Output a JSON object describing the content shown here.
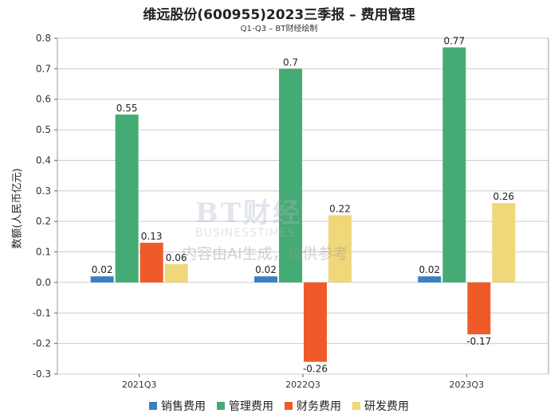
{
  "title": "维远股份(600955)2023三季报 – 费用管理",
  "subtitle": "Q1-Q3 – BT财经绘制",
  "watermark": {
    "logo": "BT财经",
    "sub": "BUSINESSTIMES",
    "note": "内容由AI生成，仅供参考"
  },
  "chart_data": {
    "type": "bar",
    "categories": [
      "2021Q3",
      "2022Q3",
      "2023Q3"
    ],
    "ylabel": "数额(人民币亿元)",
    "xlabel": "",
    "ylim": [
      -0.3,
      0.8
    ],
    "yticks": [
      -0.3,
      -0.2,
      -0.1,
      0.0,
      0.1,
      0.2,
      0.3,
      0.4,
      0.5,
      0.6,
      0.7,
      0.8
    ],
    "grid": true,
    "legend_position": "bottom",
    "series": [
      {
        "name": "销售费用",
        "color": "#3a7fc1",
        "values": [
          0.02,
          0.02,
          0.02
        ]
      },
      {
        "name": "管理费用",
        "color": "#45ab74",
        "values": [
          0.55,
          0.7,
          0.77
        ]
      },
      {
        "name": "财务费用",
        "color": "#f05a28",
        "values": [
          0.13,
          -0.26,
          -0.17
        ]
      },
      {
        "name": "研发费用",
        "color": "#efd77a",
        "values": [
          0.06,
          0.22,
          0.26
        ]
      }
    ]
  }
}
